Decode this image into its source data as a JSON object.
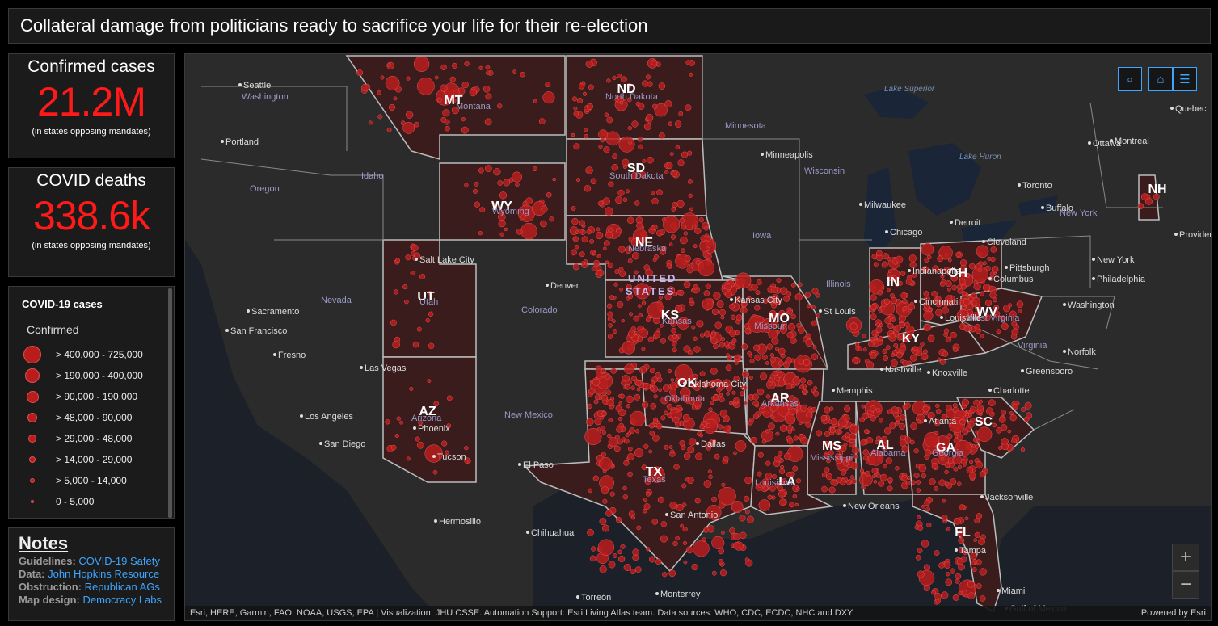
{
  "header": {
    "title": "Collateral damage from politicians ready to sacrifice your life for their re-election"
  },
  "cases": {
    "label": "Confirmed cases",
    "value": "21.2M",
    "note": "(in states opposing mandates)"
  },
  "deaths": {
    "label": "COVID deaths",
    "value": "338.6k",
    "note": "(in states opposing mandates)"
  },
  "legend": {
    "title": "COVID-19 cases",
    "subtitle": "Confirmed",
    "items": [
      {
        "label": "> 400,000 - 725,000",
        "size": 22
      },
      {
        "label": "> 190,000 - 400,000",
        "size": 18
      },
      {
        "label": "> 90,000 - 190,000",
        "size": 15
      },
      {
        "label": "> 48,000 - 90,000",
        "size": 12
      },
      {
        "label": "> 29,000 - 48,000",
        "size": 10
      },
      {
        "label": "> 14,000 - 29,000",
        "size": 8
      },
      {
        "label": "> 5,000 - 14,000",
        "size": 6
      },
      {
        "label": "0 - 5,000",
        "size": 4
      }
    ]
  },
  "notes": {
    "title": "Notes",
    "rows": [
      {
        "key": "Guidelines:",
        "value": "COVID-19 Safety"
      },
      {
        "key": "Data:",
        "value": "John Hopkins Resource"
      },
      {
        "key": "Obstruction:",
        "value": "Republican AGs"
      },
      {
        "key": "Map design:",
        "value": "Democracy Labs"
      }
    ]
  },
  "map": {
    "attribution": "Esri, HERE, Garmin, FAO, NOAA, USGS, EPA | Visualization: JHU CSSE. Automation Support: Esri Living Atlas team. Data sources: WHO, CDC, ECDC, NHC and DXY.",
    "powered_by": "Powered by Esri",
    "country_label_1": "UNITED",
    "country_label_2": "STATES",
    "highlight_color": "#b81d1d",
    "accent_color": "#3ea6ff",
    "states": [
      "MT",
      "ND",
      "SD",
      "WY",
      "NE",
      "UT",
      "KS",
      "MO",
      "IN",
      "OH",
      "WV",
      "KY",
      "OK",
      "AR",
      "AZ",
      "TX",
      "MS",
      "AL",
      "GA",
      "SC",
      "LA",
      "FL",
      "NH"
    ],
    "regions": [
      "Washington",
      "Montana",
      "North Dakota",
      "Minnesota",
      "South Dakota",
      "Wisconsin",
      "Idaho",
      "Oregon",
      "Wyoming",
      "Nebraska",
      "Nevada",
      "Utah",
      "Colorado",
      "Kansas",
      "Illinois",
      "Iowa",
      "Missouri",
      "Oklahoma",
      "Arkansas",
      "Arizona",
      "New Mexico",
      "Texas",
      "Mississippi",
      "Alabama",
      "Georgia",
      "Louisiana",
      "Virginia",
      "West Virginia",
      "New York",
      "Lake Superior",
      "Lake Huron"
    ],
    "cities": [
      "Seattle",
      "Portland",
      "Sacramento",
      "San Francisco",
      "Fresno",
      "Las Vegas",
      "Los Angeles",
      "San Diego",
      "Phoenix",
      "Tucson",
      "Salt Lake City",
      "Denver",
      "El Paso",
      "Dallas",
      "San Antonio",
      "Oklahoma City",
      "Kansas City",
      "St Louis",
      "Chicago",
      "Milwaukee",
      "Minneapolis",
      "Detroit",
      "Cleveland",
      "Columbus",
      "Cincinnati",
      "Louisville",
      "Indianapolis",
      "Nashville",
      "Memphis",
      "Knoxville",
      "Greensboro",
      "Charlotte",
      "Atlanta",
      "Jacksonville",
      "Tampa",
      "Miami",
      "New Orleans",
      "Pittsburgh",
      "Philadelphia",
      "New York",
      "Washington",
      "Norfolk",
      "Toronto",
      "Buffalo",
      "Montreal",
      "Ottawa",
      "Quebec",
      "Providence",
      "Hermosillo",
      "Chihuahua",
      "Monterrey",
      "Torreón",
      "Gulf of Mexico"
    ]
  }
}
